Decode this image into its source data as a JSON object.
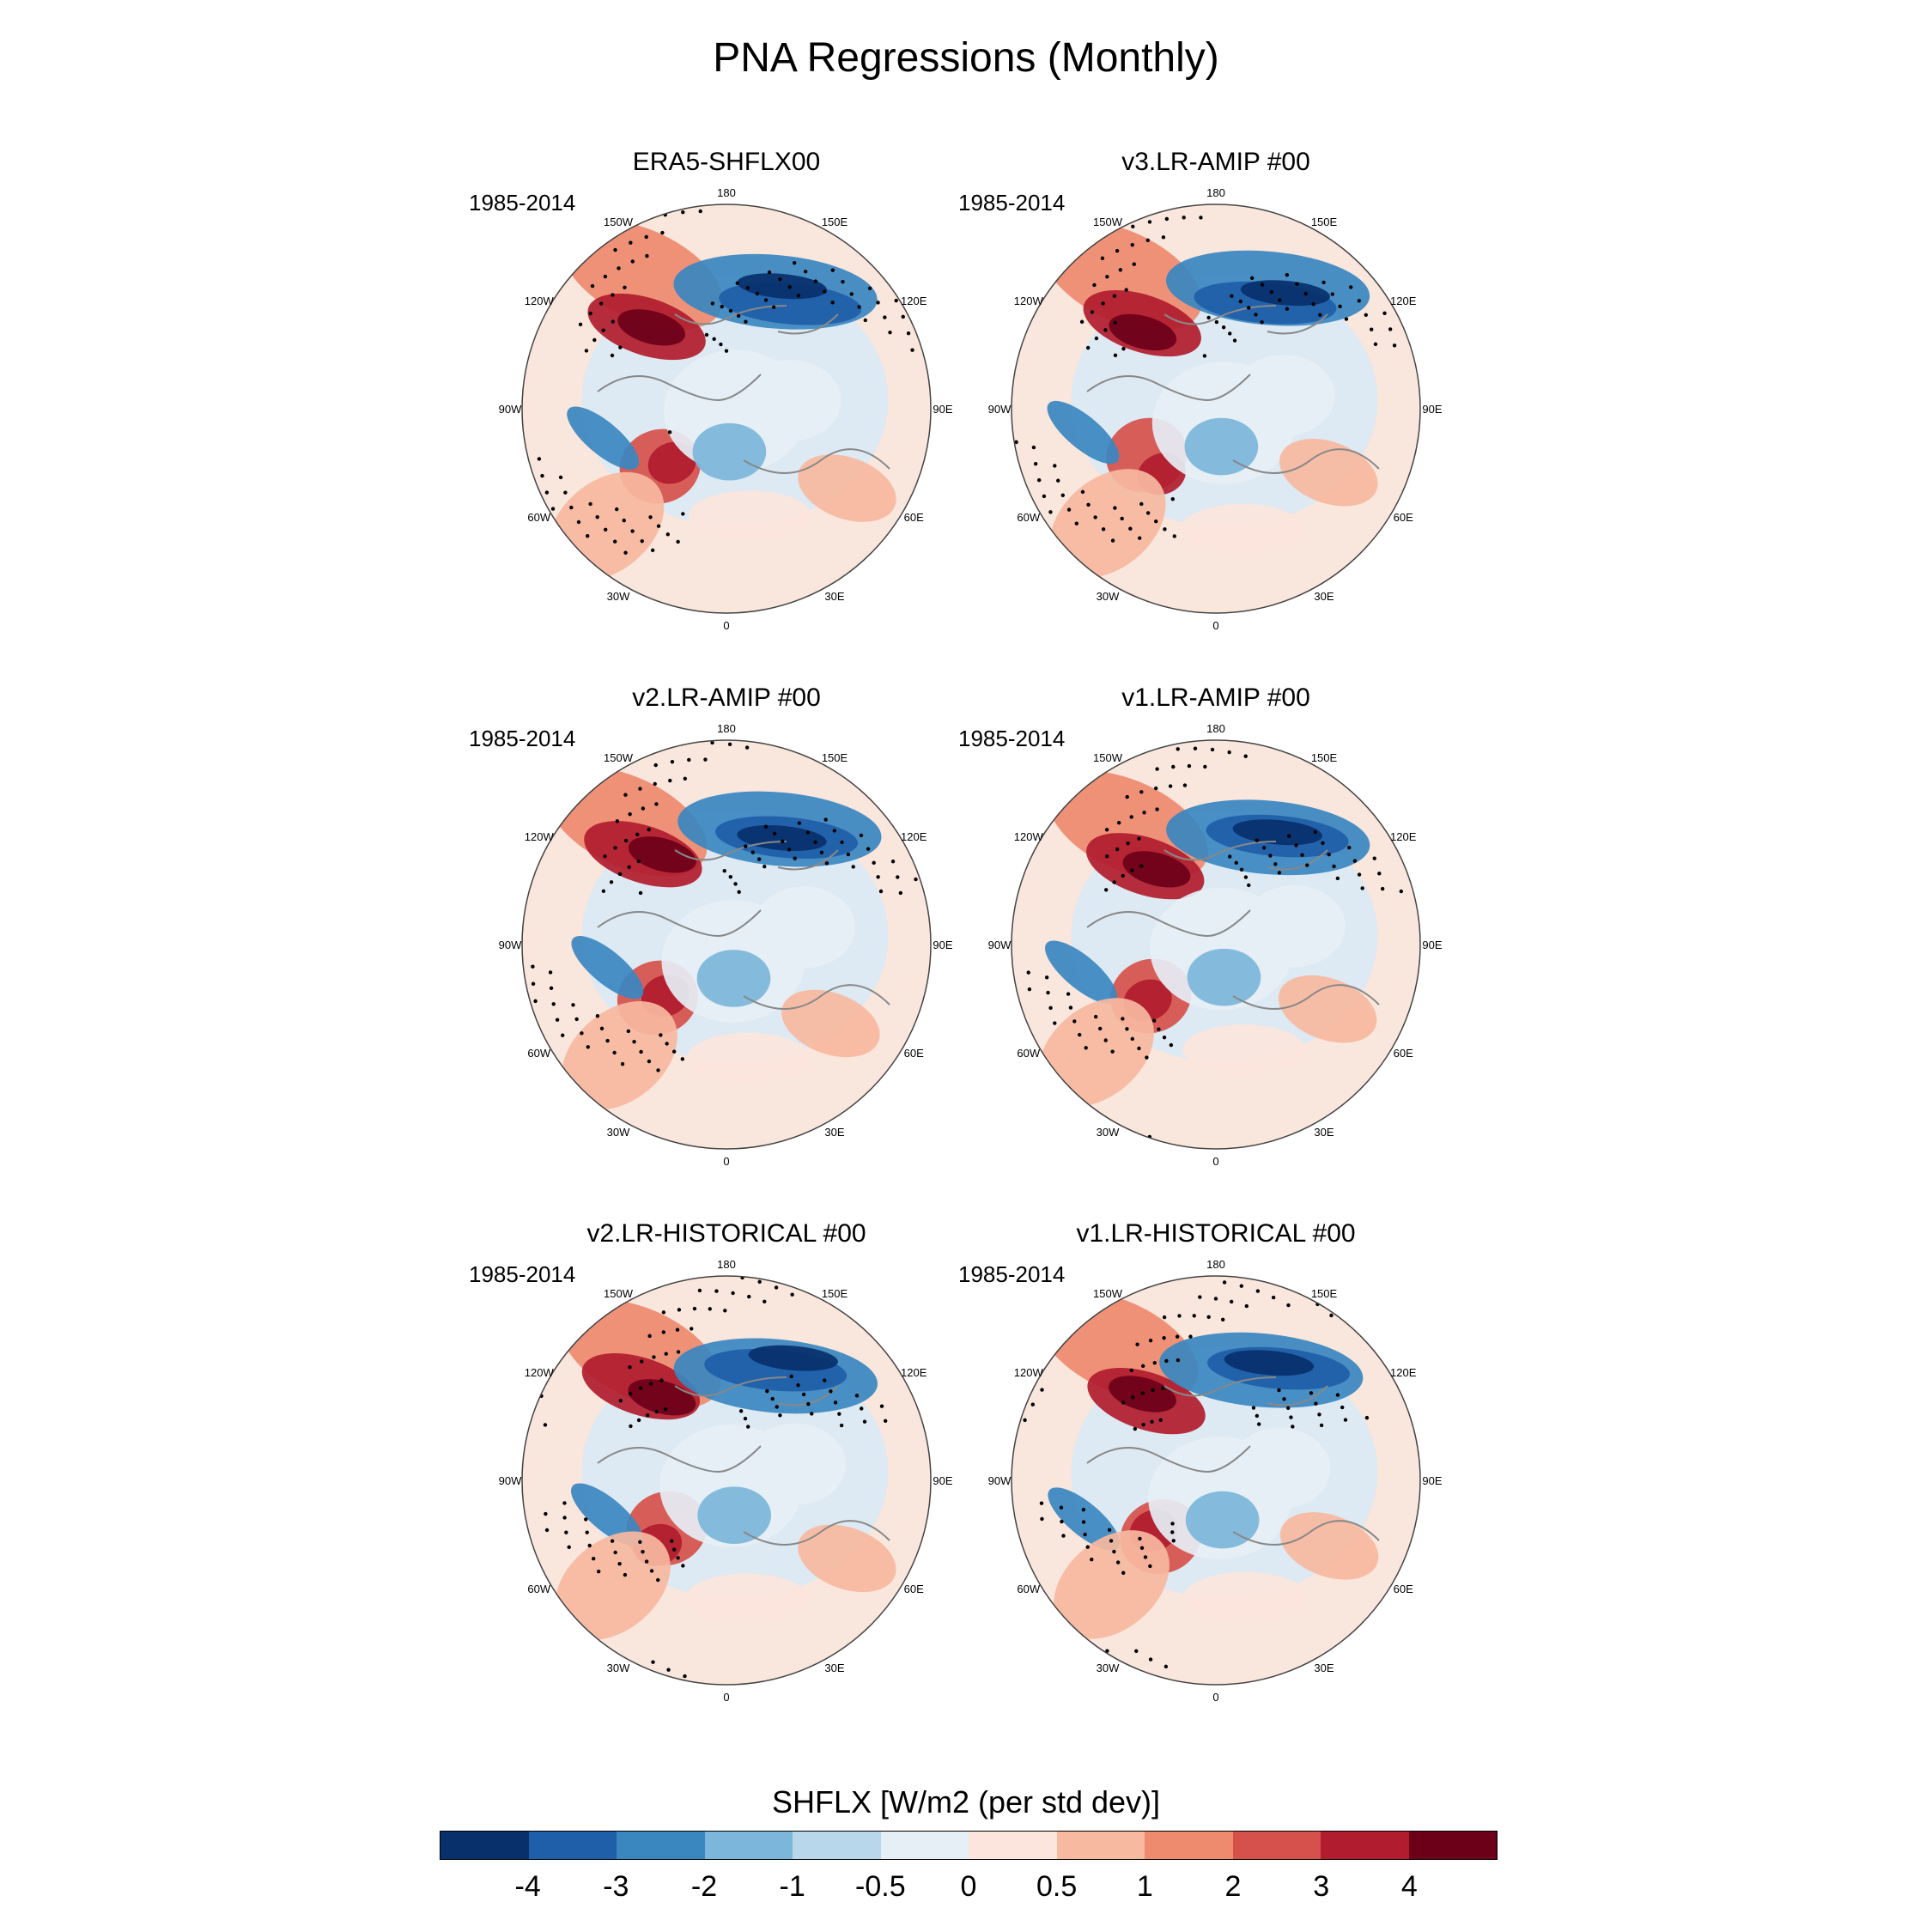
{
  "title": "PNA Regressions (Monthly)",
  "panels": [
    {
      "title": "ERA5-SHFLX00",
      "years": "1985-2014"
    },
    {
      "title": "v3.LR-AMIP  #00",
      "years": "1985-2014"
    },
    {
      "title": "v2.LR-AMIP  #00",
      "years": "1985-2014"
    },
    {
      "title": "v1.LR-AMIP  #00",
      "years": "1985-2014"
    },
    {
      "title": "v2.LR-HISTORICAL  #00",
      "years": "1985-2014"
    },
    {
      "title": "v1.LR-HISTORICAL  #00",
      "years": "1985-2014"
    }
  ],
  "longitude_labels": [
    "180",
    "150E",
    "120E",
    "90E",
    "60E",
    "30E",
    "0",
    "30W",
    "60W",
    "90W",
    "120W",
    "150W"
  ],
  "colorbar": {
    "title": "SHFLX [W/m2 (per std dev)]",
    "labels": [
      "-4",
      "-3",
      "-2",
      "-1",
      "-0.5",
      "0",
      "0.5",
      "1",
      "2",
      "3",
      "4"
    ],
    "colors": [
      "#08306b",
      "#1f5ea8",
      "#3a87c0",
      "#7cb6da",
      "#b9d7ea",
      "#e6eff5",
      "#fbe5dc",
      "#f7b99f",
      "#ee8a6e",
      "#d6514b",
      "#b11c2e",
      "#6d0019"
    ]
  },
  "colors": {
    "neg_strong": "#08306b",
    "pos_strong": "#6d0019",
    "neutral": "#e6eff5"
  }
}
